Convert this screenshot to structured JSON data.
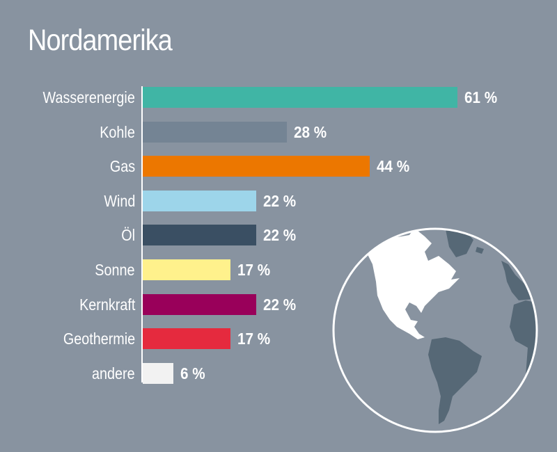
{
  "header": {
    "title": "Nordamerika"
  },
  "chart_data": {
    "type": "bar",
    "orientation": "horizontal",
    "title": "Nordamerika",
    "xlabel": "",
    "ylabel": "",
    "grid": false,
    "value_suffix": "%",
    "categories": [
      "Wasserenergie",
      "Kohle",
      "Gas",
      "Wind",
      "Öl",
      "Sonne",
      "Kernkraft",
      "Geothermie",
      "andere"
    ],
    "values": [
      61,
      28,
      44,
      22,
      22,
      17,
      22,
      17,
      6
    ],
    "value_labels": [
      "61 %",
      "28 %",
      "44 %",
      "22 %",
      "22 %",
      "17 %",
      "22 %",
      "17 %",
      "6 %"
    ],
    "colors": [
      "#40b5a5",
      "#748494",
      "#ec7700",
      "#9dd5ea",
      "#3a4f63",
      "#fff18c",
      "#99005a",
      "#e52a3e",
      "#f2f2f2"
    ],
    "xlim": [
      0,
      61
    ]
  },
  "rows": [
    {
      "label": "Wasserenergie",
      "value": "61 %"
    },
    {
      "label": "Kohle",
      "value": "28 %"
    },
    {
      "label": "Gas",
      "value": "44 %"
    },
    {
      "label": "Wind",
      "value": "22 %"
    },
    {
      "label": "Öl",
      "value": "22 %"
    },
    {
      "label": "Sonne",
      "value": "17 %"
    },
    {
      "label": "Kernkraft",
      "value": "22 %"
    },
    {
      "label": "Geothermie",
      "value": "17 %"
    },
    {
      "label": "andere",
      "value": "6 %"
    }
  ],
  "graphic": {
    "icon": "globe-americas-icon"
  }
}
